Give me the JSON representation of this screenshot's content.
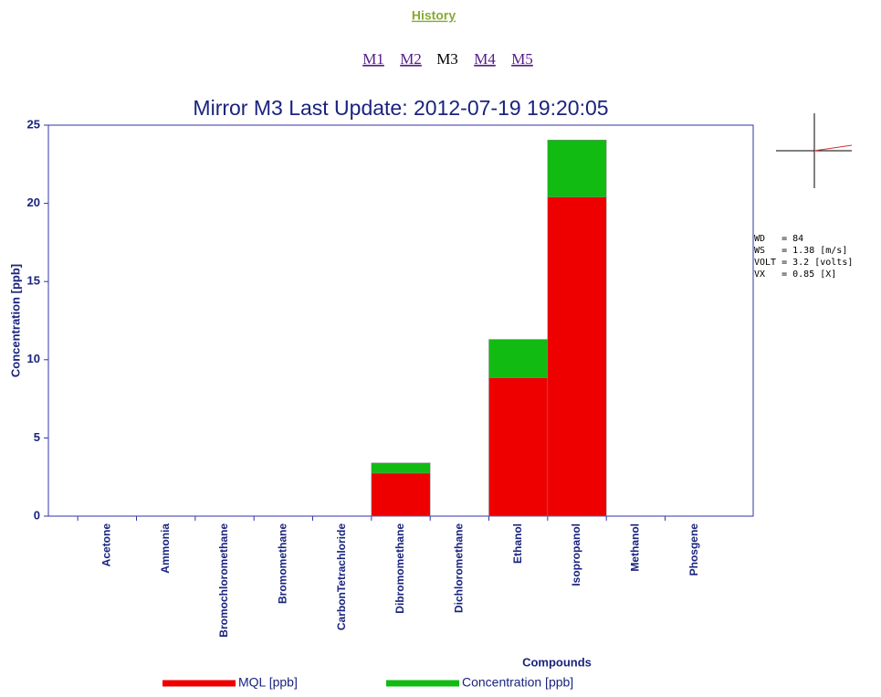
{
  "nav": {
    "history": "History",
    "mirrors": [
      "M1",
      "M2",
      "M3",
      "M4",
      "M5"
    ],
    "current": 2
  },
  "wind": {
    "lines": [
      "WD   = 84",
      "WS   = 1.38 [m/s]",
      "VOLT = 3.2 [volts]",
      "VX   = 0.85 [X]"
    ]
  },
  "chart_data": {
    "type": "stacked-bar",
    "title": "Mirror M3 Last Update:  2012-07-19 19:20:05",
    "x_label": "Compounds",
    "y_label": "Concentration [ppb]",
    "categories": [
      "Acetone",
      "Ammonia",
      "Bromochloromethane",
      "Bromomethane",
      "CarbonTetrachloride",
      "Dibromomethane",
      "Dichloromethane",
      "Ethanol",
      "Isopropanol",
      "Methanol",
      "Phosgene"
    ],
    "series": [
      {
        "name": "MQL [ppb]",
        "color": "#ee0000",
        "values": [
          0,
          0,
          0,
          0,
          0,
          2.75,
          0,
          8.85,
          20.4,
          0,
          0
        ]
      },
      {
        "name": "Concentration [ppb]",
        "color": "#11bb11",
        "values": [
          0,
          0,
          0,
          0,
          0,
          0.65,
          0,
          2.45,
          3.65,
          0,
          0
        ]
      }
    ],
    "ylim": [
      0,
      25
    ],
    "yticks": [
      0,
      5,
      10,
      15,
      20,
      25
    ]
  }
}
